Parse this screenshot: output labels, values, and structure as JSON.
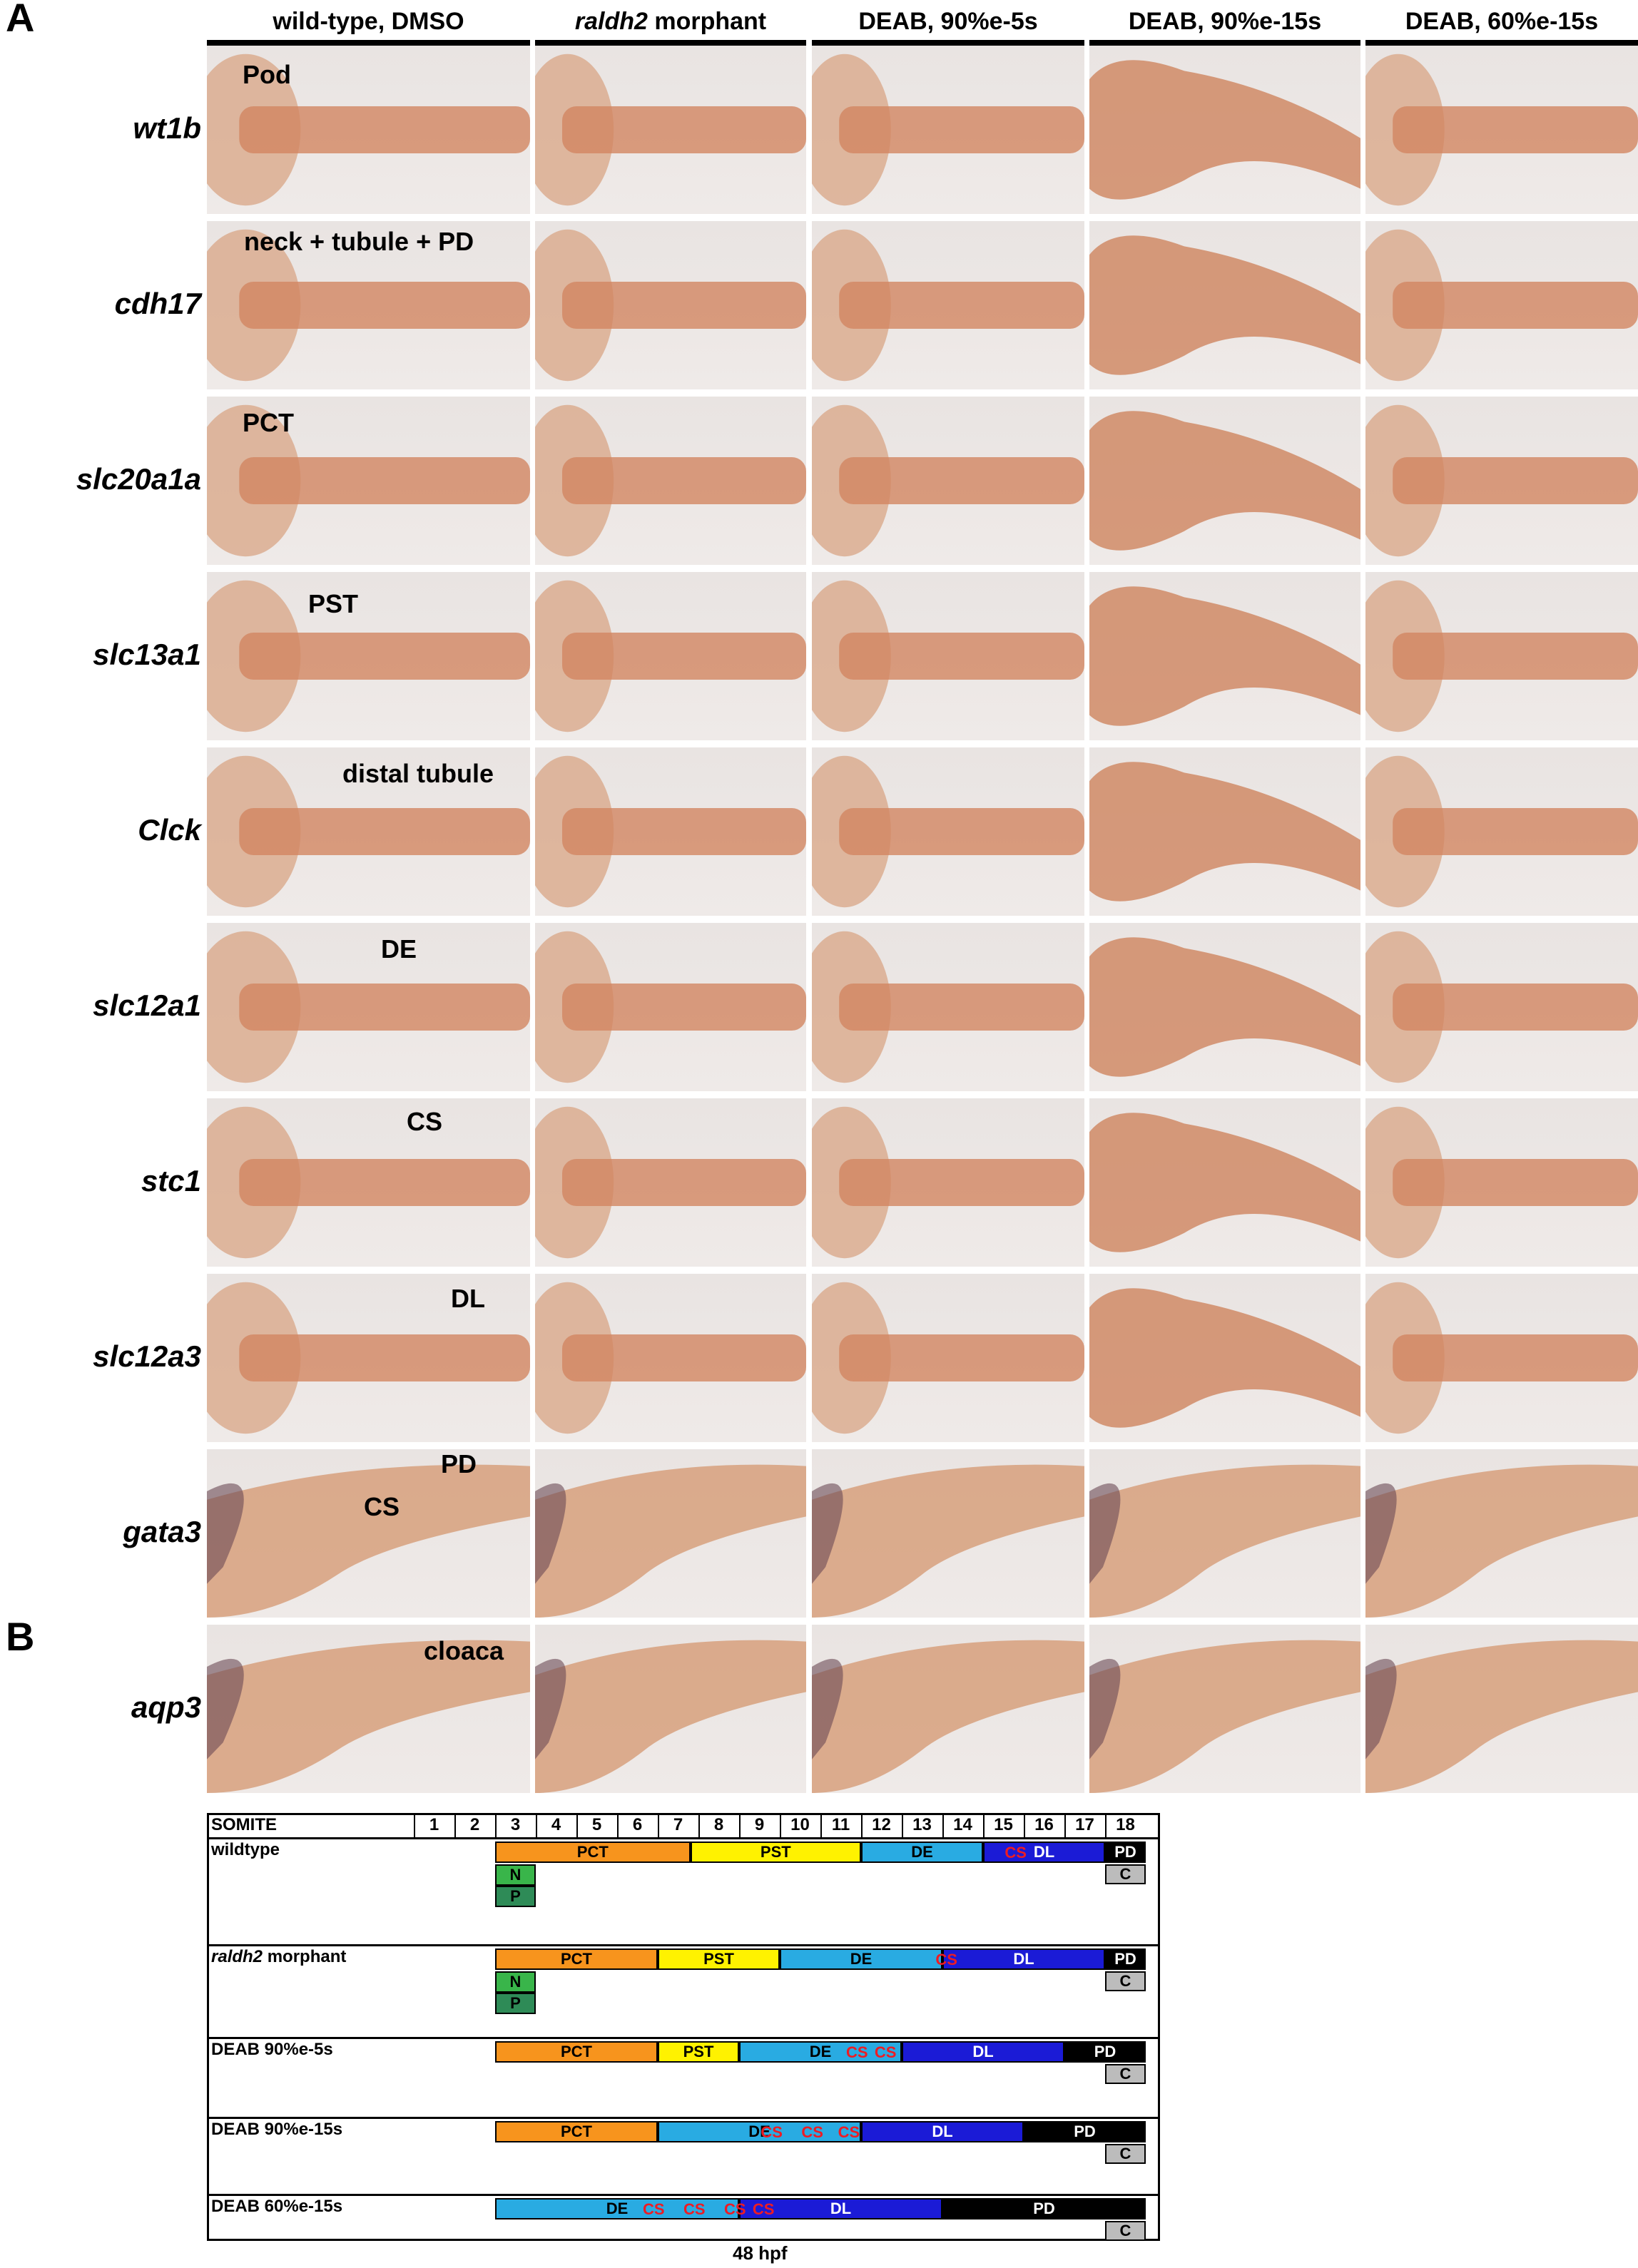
{
  "panel_a": {
    "letter": "A",
    "columns": [
      {
        "label": "wild-type, DMSO",
        "italic_part": ""
      },
      {
        "label": " morphant",
        "italic_part": "raldh2"
      },
      {
        "label": "DEAB, 90%e-5s",
        "italic_part": ""
      },
      {
        "label": "DEAB, 90%e-15s",
        "italic_part": ""
      },
      {
        "label": "DEAB, 60%e-15s",
        "italic_part": ""
      }
    ],
    "rows": [
      "wt1b",
      "cdh17",
      "slc20a1a",
      "slc13a1",
      "Clck",
      "slc12a1",
      "stc1",
      "slc12a3",
      "gata3",
      "aqp3"
    ],
    "annotations": {
      "pod": "Pod",
      "neck": "neck + tubule + PD",
      "pct": "PCT",
      "pst": "PST",
      "distal": "distal tubule",
      "de": "DE",
      "cs": "CS",
      "dl": "DL",
      "pd": "PD",
      "cs2": "CS",
      "cloaca": "cloaca"
    }
  },
  "panel_b": {
    "letter": "B",
    "header": "SOMITE",
    "somites": [
      "1",
      "2",
      "3",
      "4",
      "5",
      "6",
      "7",
      "8",
      "9",
      "10",
      "11",
      "12",
      "13",
      "14",
      "15",
      "16",
      "17",
      "18"
    ],
    "rows": [
      {
        "name": "wildtype",
        "italic": ""
      },
      {
        "name": " morphant",
        "italic": "raldh2"
      },
      {
        "name": "DEAB 90%e-5s",
        "italic": ""
      },
      {
        "name": "DEAB 90%e-15s",
        "italic": ""
      },
      {
        "name": "DEAB 60%e-15s",
        "italic": ""
      }
    ],
    "segment_labels": {
      "pct": "PCT",
      "pst": "PST",
      "de": "DE",
      "cs": "CS",
      "dl": "DL",
      "pd": "PD",
      "c": "C",
      "n": "N",
      "p": "P"
    },
    "colors": {
      "pct": "#f7941d",
      "pst": "#fff200",
      "de": "#29abe2",
      "dl": "#1b1bd6",
      "pd": "#000000",
      "c": "#bcbcbc",
      "n": "#39b54a",
      "p": "#2e8b57",
      "cs": "#ed1c24"
    },
    "footer": "48 hpf"
  }
}
